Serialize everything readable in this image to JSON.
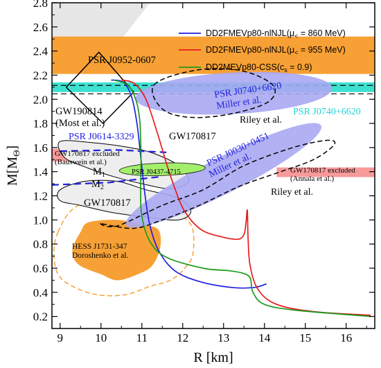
{
  "chart_data": {
    "type": "line",
    "xlabel": "R [km]",
    "ylabel": "M[M",
    "ylabel_sub": "Θ",
    "ylabel_close": "]",
    "xlim": [
      8.8,
      16.7
    ],
    "ylim": [
      0.1,
      2.8
    ],
    "xticks": [
      9,
      10,
      11,
      12,
      13,
      14,
      15,
      16
    ],
    "yticks": [
      0.2,
      0.4,
      0.6,
      0.8,
      1.0,
      1.2,
      1.4,
      1.6,
      1.8,
      2.0,
      2.2,
      2.4,
      2.6,
      2.8
    ],
    "xtick_labels": [
      "9",
      "10",
      "11",
      "12",
      "13",
      "14",
      "15",
      "16"
    ],
    "ytick_labels": [
      "0.2",
      "0.4",
      "0.6",
      "0.8",
      "1.0",
      "1.2",
      "1.4",
      "1.6",
      "1.8",
      "2.0",
      "2.2",
      "2.4",
      "2.6",
      "2.8"
    ],
    "colors": {
      "orange": "#f7a035",
      "cyan": "#3ee0d0",
      "blue_fill": "#a9a9f2",
      "green_fill": "#a3ef6c",
      "pink": "#f79a9a",
      "grey_fill": "#e6e6e6",
      "blue_line": "#1f1fe0",
      "red_line": "#e81b1b",
      "green_line": "#1a9a1a",
      "cyan_text": "#22d4d4"
    },
    "series": [
      {
        "name_main": "DD2FMEVp80-nlNJL(μ",
        "name_sub": "<",
        "name_tail": " = 860 MeV)",
        "color": "#1f1fe0",
        "points": [
          [
            10.25,
            2.16
          ],
          [
            10.55,
            2.14
          ],
          [
            10.75,
            2.02
          ],
          [
            10.88,
            1.8
          ],
          [
            10.98,
            1.5
          ],
          [
            11.08,
            1.2
          ],
          [
            11.2,
            0.95
          ],
          [
            11.42,
            0.74
          ],
          [
            11.8,
            0.58
          ],
          [
            12.4,
            0.49
          ],
          [
            13.2,
            0.44
          ],
          [
            13.75,
            0.44
          ],
          [
            14.05,
            0.47
          ]
        ]
      },
      {
        "name_main": "DD2FMEVp80-nlNJL(μ",
        "name_sub": "<",
        "name_tail": " = 955 MeV)",
        "color": "#e81b1b",
        "points": [
          [
            10.5,
            2.16
          ],
          [
            10.82,
            2.13
          ],
          [
            11.1,
            2.0
          ],
          [
            11.38,
            1.72
          ],
          [
            11.62,
            1.45
          ],
          [
            11.82,
            1.25
          ],
          [
            12.05,
            1.07
          ],
          [
            12.45,
            0.92
          ],
          [
            12.95,
            0.86
          ],
          [
            13.35,
            0.84
          ],
          [
            13.5,
            0.88
          ],
          [
            13.55,
            0.98
          ],
          [
            13.58,
            1.08
          ],
          [
            13.6,
            0.85
          ],
          [
            13.65,
            0.62
          ],
          [
            13.85,
            0.42
          ],
          [
            14.3,
            0.3
          ],
          [
            15.2,
            0.24
          ],
          [
            16.6,
            0.21
          ]
        ]
      },
      {
        "name_main": "DD2MEVp80-CSS(c",
        "name_sub": "s",
        "name_tail": " = 0.9)",
        "color": "#1a9a1a",
        "points": [
          [
            10.3,
            2.16
          ],
          [
            10.65,
            2.12
          ],
          [
            10.85,
            2.0
          ],
          [
            10.95,
            1.82
          ],
          [
            10.98,
            1.5
          ],
          [
            10.97,
            1.25
          ],
          [
            11.0,
            1.03
          ],
          [
            11.2,
            0.82
          ],
          [
            11.6,
            0.69
          ],
          [
            12.5,
            0.6
          ],
          [
            13.1,
            0.58
          ],
          [
            13.45,
            0.56
          ],
          [
            13.65,
            0.52
          ],
          [
            13.72,
            0.4
          ],
          [
            14.0,
            0.3
          ],
          [
            14.8,
            0.25
          ],
          [
            16.6,
            0.2
          ]
        ]
      }
    ],
    "annotations": {
      "psr0952": "PSR J0952-0607",
      "psr0740_miller_a": "PSR J0740+6620",
      "psr0740_miller_b": "Miller et al.",
      "psr0740_riley": "Riley et al.",
      "psr0740_cyan": "PSR J0740+6620",
      "gw190814_a": "GW190814",
      "gw190814_b": "(Most et al.)",
      "psr0614": "PSR J0614-3329",
      "gw170817_top": "GW170817",
      "gw_bauswein_a": "GW170817 excluded",
      "gw_bauswein_b": "(Bauswein et al.)",
      "m1": "M",
      "m1_sub": "1",
      "m2": "M",
      "m2_sub": "2",
      "psr0437": "PSR J0437-4715",
      "psr0030_a": "PSR J0030+0451",
      "psr0030_b": "Miller et al.",
      "gw_annala_a": "GW170817 excluded",
      "gw_annala_b": "(Annala et al.)",
      "riley_0030": "Riley et al.",
      "gw170817_bottom": "GW170817",
      "hess_a": "HESS J1731-347",
      "hess_b": "Doroshenko et al."
    }
  }
}
